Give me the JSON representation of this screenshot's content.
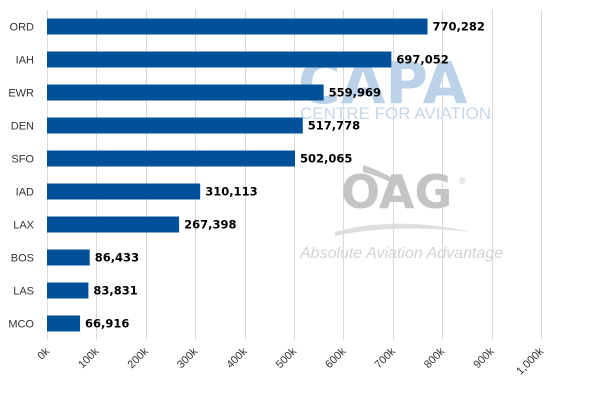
{
  "chart_data": {
    "type": "bar",
    "orientation": "horizontal",
    "title": "",
    "xlabel": "",
    "ylabel": "",
    "categories": [
      "ORD",
      "IAH",
      "EWR",
      "DEN",
      "SFO",
      "IAD",
      "LAX",
      "BOS",
      "LAS",
      "MCO"
    ],
    "values": [
      770282,
      697052,
      559969,
      517778,
      502065,
      310113,
      267398,
      86433,
      83831,
      66916
    ],
    "value_labels": [
      "770,282",
      "697,052",
      "559,969",
      "517,778",
      "502,065",
      "310,113",
      "267,398",
      "86,433",
      "83,831",
      "66,916"
    ],
    "xlim": [
      0,
      1000000
    ],
    "ticks": [
      0,
      100000,
      200000,
      300000,
      400000,
      500000,
      600000,
      700000,
      800000,
      900000,
      1000000
    ],
    "tick_labels": [
      "0k",
      "100k",
      "200k",
      "300k",
      "400k",
      "500k",
      "600k",
      "700k",
      "800k",
      "900k",
      "1,000k"
    ],
    "grid": true,
    "bar_color": "#00519a",
    "grid_color": "#d9d9d9"
  },
  "watermarks": {
    "capa": "CAPA",
    "capa_sub": "CENTRE FOR AVIATION",
    "oag": "OAG",
    "oag_mark": "®",
    "oag_tagline": "Absolute Aviation Advantage"
  }
}
